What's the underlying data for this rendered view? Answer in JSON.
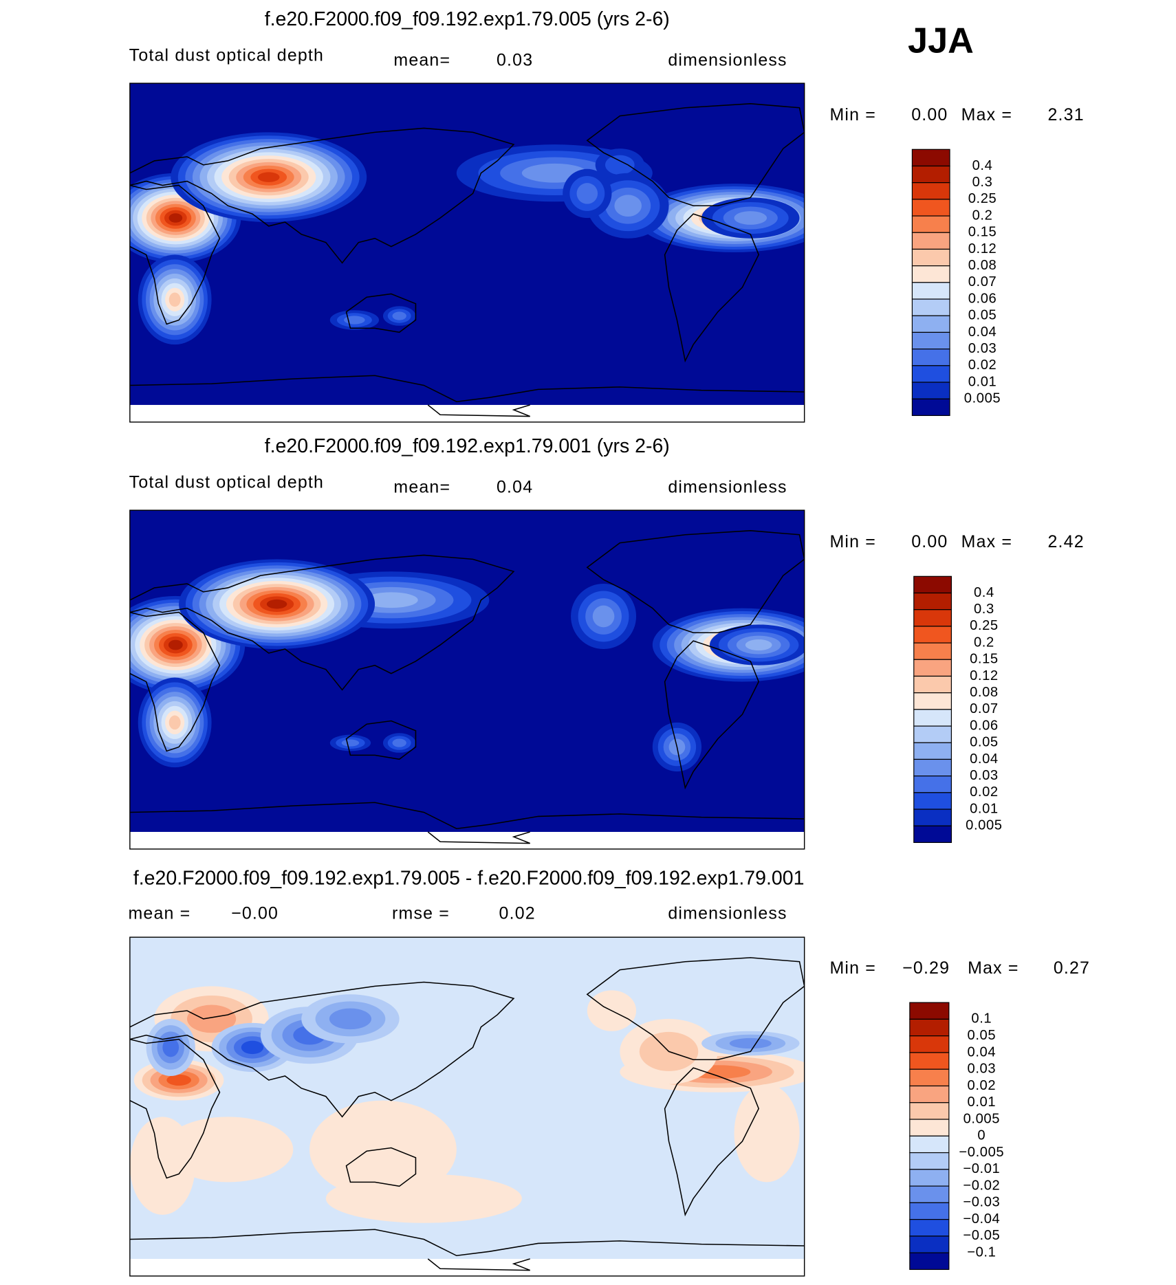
{
  "header": {
    "season": "JJA"
  },
  "panels": [
    {
      "title": "f.e20.F2000.f09_f09.192.exp1.79.005 (yrs 2-6)",
      "subtitle": {
        "variable": "Total dust optical depth",
        "mean_label": "mean=",
        "mean": "0.03",
        "units": "dimensionless"
      },
      "range": {
        "min_label": "Min =",
        "min": "0.00",
        "max_label": "Max =",
        "max": "2.31"
      },
      "colorbar": {
        "labels": [
          "0.4",
          "0.3",
          "0.25",
          "0.2",
          "0.15",
          "0.12",
          "0.08",
          "0.07",
          "0.06",
          "0.05",
          "0.04",
          "0.03",
          "0.02",
          "0.01",
          "0.005"
        ],
        "colors": [
          "#8c0a00",
          "#b31e00",
          "#d9370a",
          "#f0561f",
          "#f7804c",
          "#f9a480",
          "#fbc9ac",
          "#fde6d6",
          "#d6e6fa",
          "#b3ccf6",
          "#8eb0f1",
          "#6a91ec",
          "#4571e8",
          "#1f4fe0",
          "#0a2fc2",
          "#000a96"
        ]
      }
    },
    {
      "title": "f.e20.F2000.f09_f09.192.exp1.79.001 (yrs 2-6)",
      "subtitle": {
        "variable": "Total dust optical depth",
        "mean_label": "mean=",
        "mean": "0.04",
        "units": "dimensionless"
      },
      "range": {
        "min_label": "Min =",
        "min": "0.00",
        "max_label": "Max =",
        "max": "2.42"
      },
      "colorbar": {
        "labels": [
          "0.4",
          "0.3",
          "0.25",
          "0.2",
          "0.15",
          "0.12",
          "0.08",
          "0.07",
          "0.06",
          "0.05",
          "0.04",
          "0.03",
          "0.02",
          "0.01",
          "0.005"
        ],
        "colors": [
          "#8c0a00",
          "#b31e00",
          "#d9370a",
          "#f0561f",
          "#f7804c",
          "#f9a480",
          "#fbc9ac",
          "#fde6d6",
          "#d6e6fa",
          "#b3ccf6",
          "#8eb0f1",
          "#6a91ec",
          "#4571e8",
          "#1f4fe0",
          "#0a2fc2",
          "#000a96"
        ]
      }
    },
    {
      "title": "f.e20.F2000.f09_f09.192.exp1.79.005 - f.e20.F2000.f09_f09.192.exp1.79.001",
      "subtitle": {
        "mean_label": "mean =",
        "mean": "−0.00",
        "rmse_label": "rmse =",
        "rmse": "0.02",
        "units": "dimensionless"
      },
      "range": {
        "min_label": "Min =",
        "min": "−0.29",
        "max_label": "Max =",
        "max": "0.27"
      },
      "colorbar": {
        "labels": [
          "0.1",
          "0.05",
          "0.04",
          "0.03",
          "0.02",
          "0.01",
          "0.005",
          "0",
          "−0.005",
          "−0.01",
          "−0.02",
          "−0.03",
          "−0.04",
          "−0.05",
          "−0.1"
        ],
        "colors": [
          "#8c0a00",
          "#b31e00",
          "#d9370a",
          "#f0561f",
          "#f7804c",
          "#f9a480",
          "#fbc9ac",
          "#fde6d6",
          "#d6e6fa",
          "#b3ccf6",
          "#8eb0f1",
          "#6a91ec",
          "#4571e8",
          "#1f4fe0",
          "#0a2fc2",
          "#000a96"
        ]
      }
    }
  ]
}
